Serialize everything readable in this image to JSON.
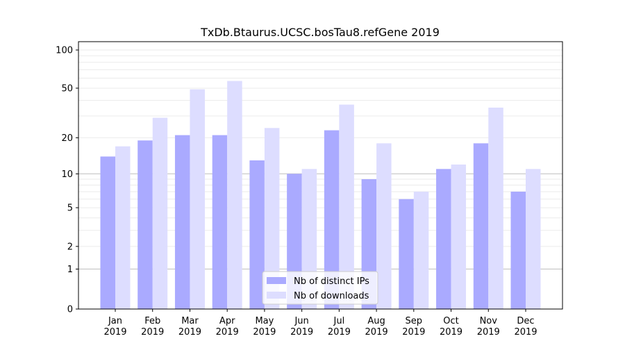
{
  "chart_data": {
    "type": "bar",
    "title": "TxDb.Btaurus.UCSC.bosTau8.refGene 2019",
    "xlabel": "",
    "ylabel": "",
    "yscale": "log(1+y)",
    "ylim": [
      0,
      120
    ],
    "yticks": [
      0,
      1,
      2,
      5,
      10,
      20,
      50,
      100
    ],
    "categories": [
      "Jan\n2019",
      "Feb\n2019",
      "Mar\n2019",
      "Apr\n2019",
      "May\n2019",
      "Jun\n2019",
      "Jul\n2019",
      "Aug\n2019",
      "Sep\n2019",
      "Oct\n2019",
      "Nov\n2019",
      "Dec\n2019"
    ],
    "series": [
      {
        "name": "Nb of distinct IPs",
        "color": "#aaaaff",
        "values": [
          14,
          19,
          21,
          21,
          13,
          10,
          23,
          9,
          6,
          11,
          18,
          7
        ]
      },
      {
        "name": "Nb of downloads",
        "color": "#ddddff",
        "values": [
          17,
          29,
          49,
          57,
          24,
          11,
          37,
          18,
          7,
          12,
          35,
          11
        ]
      }
    ],
    "legend": "bottom-center",
    "grid": true
  }
}
